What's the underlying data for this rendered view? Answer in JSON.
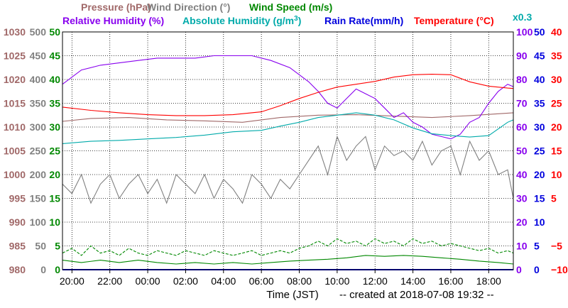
{
  "chart_data": {
    "type": "line",
    "labels": {
      "pressure": "Pressure (hPa)",
      "wind_direction": "Wind Direction (°)",
      "wind_speed": "Wind Speed (m/s)",
      "relative_humidity": "Relative Humidity (%)",
      "absolute_humidity_prefix": "Absolute Humidity (g/m",
      "absolute_humidity_sup": "3",
      "absolute_humidity_suffix": ")",
      "rain_rate": "Rain Rate(mm/h)",
      "temperature": "Temperature (°C)",
      "abs_humidity_scale": "x0.3"
    },
    "xlabel": "Time (JST)",
    "footer": "-- created at 2018-07-08 19:32 --",
    "x_ticks": [
      "20:00",
      "22:00",
      "00:00",
      "02:00",
      "04:00",
      "06:00",
      "08:00",
      "10:00",
      "12:00",
      "14:00",
      "16:00",
      "18:00"
    ],
    "x_tick_hours": [
      20,
      22,
      24,
      26,
      28,
      30,
      32,
      34,
      36,
      38,
      40,
      42
    ],
    "xlim": [
      19.5,
      43.3
    ],
    "grid": true,
    "colors": {
      "pressure": "#a06868",
      "wind_direction": "#808080",
      "wind_speed": "#008800",
      "relative_humidity": "#8800ee",
      "absolute_humidity": "#00aaaa",
      "rain_rate": "#0000dd",
      "temperature": "#ff0000"
    },
    "axes": {
      "pressure": {
        "min": 980,
        "max": 1030,
        "ticks": [
          "1030",
          "1025",
          "1020",
          "1015",
          "1010",
          "1005",
          "1000",
          "995",
          "990",
          "985",
          "980"
        ]
      },
      "wind_direction": {
        "min": 0,
        "max": 500,
        "ticks": [
          "500",
          "450",
          "400",
          "350",
          "300",
          "250",
          "200",
          "150",
          "100",
          "50",
          "0"
        ]
      },
      "wind_speed": {
        "min": 0,
        "max": 50,
        "ticks": [
          "50",
          "45",
          "40",
          "35",
          "30",
          "25",
          "20",
          "15",
          "10",
          "5",
          "0"
        ]
      },
      "relative_humidity": {
        "min": 0,
        "max": 100,
        "ticks": [
          "100",
          "90",
          "80",
          "70",
          "60",
          "50",
          "40",
          "30",
          "20",
          "10",
          "0"
        ]
      },
      "rain_rate": {
        "min": 0,
        "max": 50,
        "ticks": [
          "50",
          "45",
          "40",
          "35",
          "30",
          "25",
          "20",
          "15",
          "10",
          "5",
          "0"
        ]
      },
      "temperature": {
        "min": -10,
        "max": 40,
        "ticks": [
          "40",
          "35",
          "30",
          "25",
          "20",
          "15",
          "10",
          "5",
          "−5",
          "−10"
        ]
      }
    },
    "series": [
      {
        "key": "pressure",
        "axis": "pressure",
        "x": [
          19.5,
          21,
          23,
          25,
          27,
          29,
          31,
          33,
          35,
          37,
          39,
          41,
          43.3
        ],
        "y": [
          1011.2,
          1011.8,
          1012.0,
          1011.5,
          1011.3,
          1011.0,
          1012.0,
          1012.5,
          1012.6,
          1012.3,
          1012.0,
          1012.4,
          1013.0
        ]
      },
      {
        "key": "wind_direction",
        "axis": "wind_direction",
        "x": [
          19.5,
          20,
          20.5,
          21,
          21.5,
          22,
          22.5,
          23,
          23.5,
          24,
          24.5,
          25,
          25.5,
          26,
          26.5,
          27,
          27.5,
          28,
          28.5,
          29,
          29.5,
          30,
          30.5,
          31,
          31.5,
          32,
          32.5,
          33,
          33.5,
          34,
          34.5,
          35,
          35.5,
          36,
          36.5,
          37,
          37.5,
          38,
          38.5,
          39,
          39.5,
          40,
          40.5,
          41,
          41.5,
          42,
          42.5,
          43,
          43.3
        ],
        "y": [
          180,
          160,
          200,
          140,
          180,
          200,
          150,
          180,
          200,
          160,
          190,
          140,
          200,
          180,
          160,
          200,
          150,
          190,
          170,
          140,
          200,
          180,
          150,
          190,
          170,
          200,
          230,
          260,
          200,
          280,
          230,
          260,
          280,
          210,
          260,
          240,
          250,
          230,
          270,
          220,
          250,
          260,
          200,
          270,
          230,
          250,
          200,
          210,
          150
        ]
      },
      {
        "key": "wind_speed_gust",
        "axis": "wind_speed",
        "dashed": true,
        "x": [
          19.5,
          20,
          20.5,
          21,
          21.5,
          22,
          22.5,
          23,
          23.5,
          24,
          24.5,
          25,
          25.5,
          26,
          26.5,
          27,
          27.5,
          28,
          28.5,
          29,
          29.5,
          30,
          30.5,
          31,
          31.5,
          32,
          32.5,
          33,
          33.5,
          34,
          34.5,
          35,
          35.5,
          36,
          36.5,
          37,
          37.5,
          38,
          38.5,
          39,
          39.5,
          40,
          40.5,
          41,
          41.5,
          42,
          42.5,
          43,
          43.3
        ],
        "y": [
          3.5,
          4.5,
          3,
          5,
          3.5,
          4,
          3,
          4.5,
          3.5,
          3,
          4,
          3.5,
          3,
          4,
          3.5,
          3,
          4,
          3.5,
          3,
          3.5,
          4,
          3,
          3.5,
          4,
          3.5,
          4.5,
          5,
          6,
          5,
          6.5,
          5.5,
          6,
          5,
          6.5,
          5.5,
          6,
          5,
          6.5,
          5.5,
          6,
          5,
          5.5,
          5,
          4.5,
          4,
          4.5,
          3.5,
          4,
          3.5
        ]
      },
      {
        "key": "wind_speed",
        "axis": "wind_speed",
        "x": [
          19.5,
          20.5,
          21.5,
          22.5,
          23.5,
          24.5,
          25.5,
          26.5,
          27.5,
          28.5,
          29.5,
          30.5,
          31.5,
          32.5,
          33.5,
          34.5,
          35.5,
          36.5,
          37.5,
          38.5,
          39.5,
          40.5,
          41.5,
          42.5,
          43.3
        ],
        "y": [
          2,
          1.5,
          2,
          1.5,
          2,
          1.5,
          1.2,
          1.5,
          1.2,
          1.5,
          1.2,
          1.5,
          1.8,
          2,
          2.2,
          2.5,
          3,
          2.8,
          3,
          2.8,
          2.5,
          2.2,
          1.8,
          1.5,
          1.2
        ]
      },
      {
        "key": "relative_humidity",
        "axis": "relative_humidity",
        "x": [
          19.5,
          20.5,
          21.5,
          22.5,
          23.5,
          24.5,
          25.5,
          26.5,
          27.5,
          28.5,
          29.5,
          30.5,
          31.5,
          32,
          32.5,
          33,
          33.5,
          34,
          34.5,
          35,
          35.5,
          36,
          36.5,
          37,
          37.5,
          38,
          38.5,
          39,
          39.5,
          40,
          40.5,
          41,
          41.5,
          42,
          42.5,
          43,
          43.3
        ],
        "y": [
          78,
          84,
          86,
          87,
          88,
          89,
          89,
          89,
          90,
          90,
          90,
          88,
          85,
          82,
          79,
          75,
          70,
          68,
          72,
          76,
          74,
          72,
          68,
          64,
          66,
          62,
          60,
          57,
          56,
          55,
          57,
          62,
          64,
          70,
          75,
          78,
          77
        ]
      },
      {
        "key": "absolute_humidity",
        "axis": "temperature",
        "x": [
          19.5,
          21,
          22.5,
          24,
          25.5,
          27,
          28.5,
          30,
          31,
          32,
          33,
          34,
          35,
          36,
          37,
          38,
          39,
          40,
          41,
          42,
          43,
          43.3
        ],
        "y": [
          16.5,
          17.0,
          17.2,
          17.5,
          17.8,
          18.3,
          19.0,
          19.3,
          20.2,
          21.0,
          22.0,
          22.5,
          23.0,
          22.5,
          21.5,
          19.8,
          18.6,
          18.2,
          17.9,
          18.2,
          21.0,
          21.5
        ]
      },
      {
        "key": "rain_rate",
        "axis": "rain_rate",
        "x": [
          19.5,
          43.3
        ],
        "y": [
          0,
          0
        ]
      },
      {
        "key": "temperature",
        "axis": "temperature",
        "x": [
          19.5,
          21,
          22.5,
          24,
          25.5,
          27,
          28.5,
          30,
          31,
          32,
          33,
          34,
          35,
          36,
          37,
          38,
          39,
          40,
          41,
          42,
          43,
          43.3
        ],
        "y": [
          24.2,
          23.5,
          23.0,
          22.6,
          22.4,
          22.4,
          22.6,
          23.2,
          24.5,
          26.0,
          27.3,
          28.4,
          29.0,
          29.6,
          30.5,
          31.0,
          31.1,
          31.0,
          29.5,
          28.6,
          28.2,
          28.1
        ]
      }
    ]
  }
}
